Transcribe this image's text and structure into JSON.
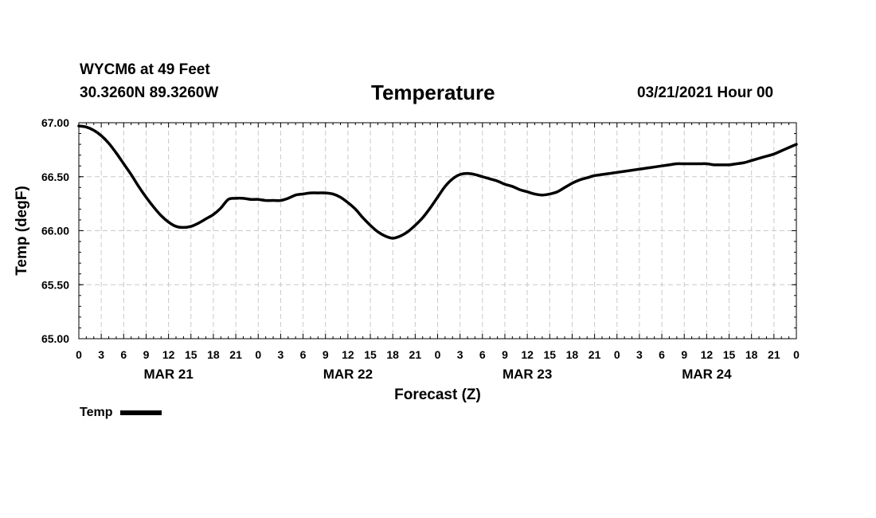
{
  "header": {
    "station": "WYCM6 at 49 Feet",
    "coords": "30.3260N 89.3260W",
    "title": "Temperature",
    "runtime": "03/21/2021 Hour 00"
  },
  "legend": {
    "label": "Temp",
    "color": "#000000"
  },
  "chart_data": {
    "type": "line",
    "title": "Temperature",
    "xlabel": "Forecast (Z)",
    "ylabel": "Temp (degF)",
    "ylim": [
      65.0,
      67.0
    ],
    "yticks": [
      "65.00",
      "65.50",
      "66.00",
      "66.50",
      "67.00"
    ],
    "xlim": [
      0,
      96
    ],
    "xtick_step_hours": 3,
    "xtick_labels": [
      "0",
      "3",
      "6",
      "9",
      "12",
      "15",
      "18",
      "21",
      "0",
      "3",
      "6",
      "9",
      "12",
      "15",
      "18",
      "21",
      "0",
      "3",
      "6",
      "9",
      "12",
      "15",
      "18",
      "21",
      "0",
      "3",
      "6",
      "9",
      "12",
      "15",
      "18",
      "21",
      "0"
    ],
    "day_labels": [
      {
        "label": "MAR 21",
        "hour": 12
      },
      {
        "label": "MAR 22",
        "hour": 36
      },
      {
        "label": "MAR 23",
        "hour": 60
      },
      {
        "label": "MAR 24",
        "hour": 84
      }
    ],
    "grid": true,
    "legend_position": "bottom-left",
    "series": [
      {
        "name": "Temp",
        "color": "#000000",
        "x": [
          0,
          1,
          2,
          3,
          4,
          5,
          6,
          7,
          8,
          9,
          10,
          11,
          12,
          13,
          14,
          15,
          16,
          17,
          18,
          19,
          20,
          21,
          22,
          23,
          24,
          25,
          26,
          27,
          28,
          29,
          30,
          31,
          32,
          33,
          34,
          35,
          36,
          37,
          38,
          39,
          40,
          41,
          42,
          43,
          44,
          45,
          46,
          47,
          48,
          49,
          50,
          51,
          52,
          53,
          54,
          55,
          56,
          57,
          58,
          59,
          60,
          61,
          62,
          63,
          64,
          65,
          66,
          67,
          68,
          69,
          70,
          71,
          72,
          73,
          74,
          75,
          76,
          77,
          78,
          79,
          80,
          81,
          82,
          83,
          84,
          85,
          86,
          87,
          88,
          89,
          90,
          91,
          92,
          93,
          94,
          95,
          96
        ],
        "y": [
          66.97,
          66.96,
          66.93,
          66.88,
          66.81,
          66.72,
          66.62,
          66.52,
          66.41,
          66.31,
          66.22,
          66.14,
          66.08,
          66.04,
          66.03,
          66.04,
          66.07,
          66.11,
          66.15,
          66.21,
          66.29,
          66.3,
          66.3,
          66.29,
          66.29,
          66.28,
          66.28,
          66.28,
          66.3,
          66.33,
          66.34,
          66.35,
          66.35,
          66.35,
          66.34,
          66.31,
          66.26,
          66.2,
          66.12,
          66.05,
          65.99,
          65.95,
          65.93,
          65.95,
          65.99,
          66.05,
          66.12,
          66.21,
          66.31,
          66.41,
          66.48,
          66.52,
          66.53,
          66.52,
          66.5,
          66.48,
          66.46,
          66.43,
          66.41,
          66.38,
          66.36,
          66.34,
          66.33,
          66.34,
          66.36,
          66.4,
          66.44,
          66.47,
          66.49,
          66.51,
          66.52,
          66.53,
          66.54,
          66.55,
          66.56,
          66.57,
          66.58,
          66.59,
          66.6,
          66.61,
          66.62,
          66.62,
          66.62,
          66.62,
          66.62,
          66.61,
          66.61,
          66.61,
          66.62,
          66.63,
          66.65,
          66.67,
          66.69,
          66.71,
          66.74,
          66.77,
          66.8
        ]
      }
    ]
  }
}
